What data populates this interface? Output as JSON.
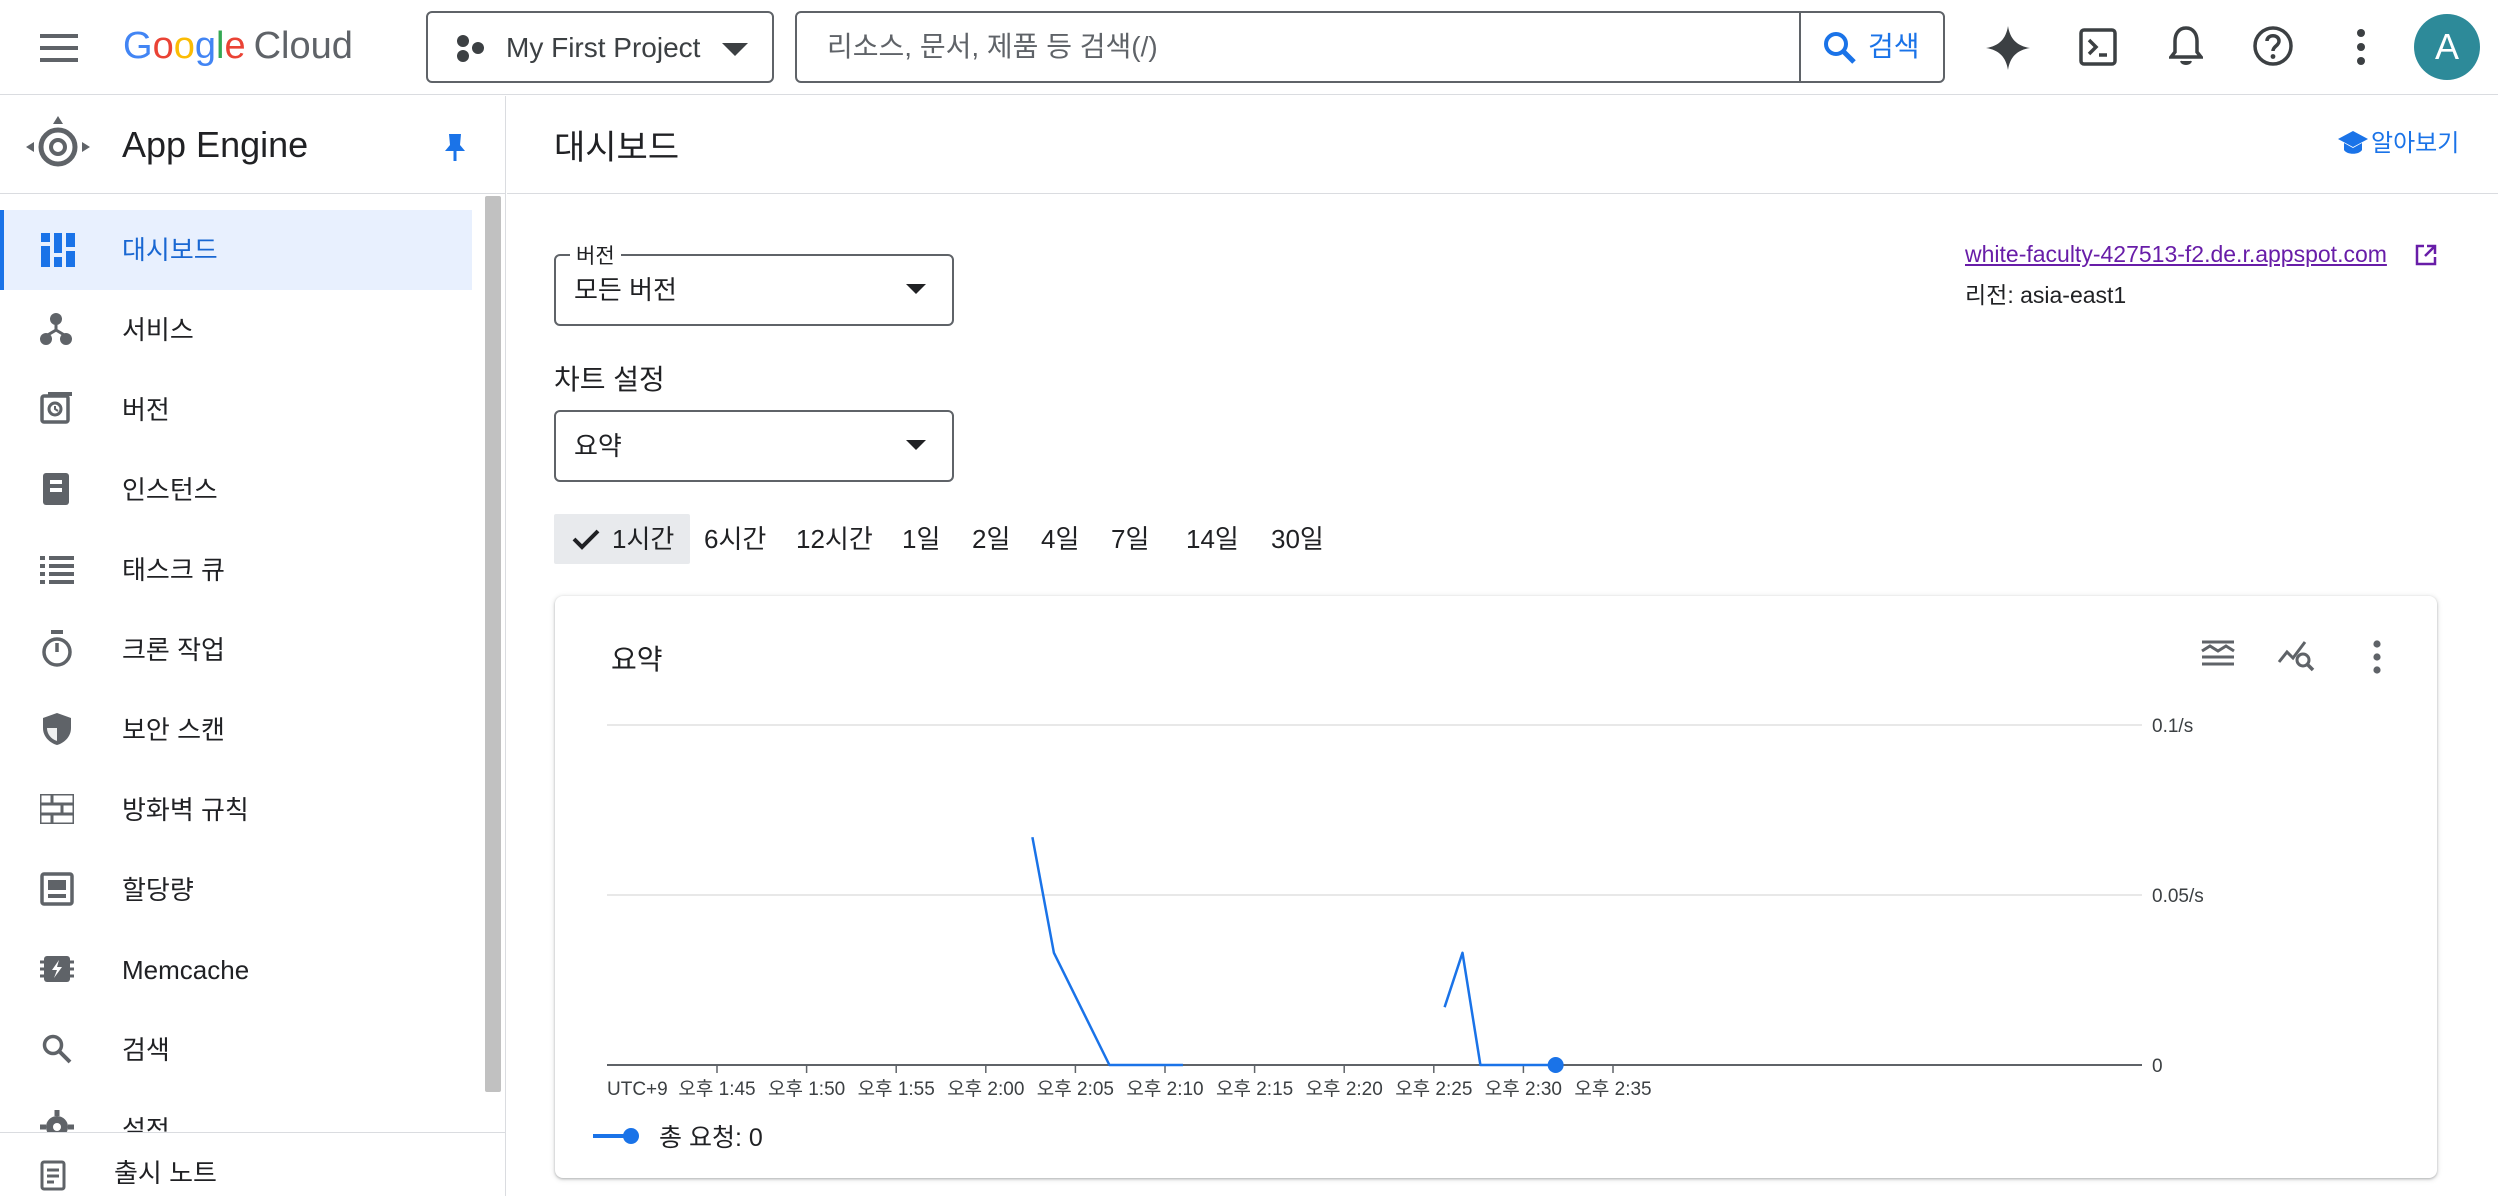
{
  "topbar": {
    "logo_google": [
      "G",
      "o",
      "o",
      "g",
      "l",
      "e"
    ],
    "logo_cloud": "Cloud",
    "project_name": "My First Project",
    "search_placeholder": "리소스, 문서, 제품 등 검색(/)",
    "search_button": "검색",
    "avatar_letter": "A",
    "icons": [
      "menu-icon",
      "project-icon",
      "dropdown-icon",
      "search-icon",
      "gemini-sparkle-icon",
      "cloud-shell-icon",
      "notifications-icon",
      "help-icon",
      "more-vert-icon"
    ]
  },
  "sidebar": {
    "product": "App Engine",
    "items": [
      {
        "label": "대시보드",
        "icon": "dashboard-icon",
        "active": true
      },
      {
        "label": "서비스",
        "icon": "services-icon",
        "active": false
      },
      {
        "label": "버전",
        "icon": "versions-icon",
        "active": false
      },
      {
        "label": "인스턴스",
        "icon": "instances-icon",
        "active": false
      },
      {
        "label": "태스크 큐",
        "icon": "task-queue-icon",
        "active": false
      },
      {
        "label": "크론 작업",
        "icon": "timer-icon",
        "active": false
      },
      {
        "label": "보안 스캔",
        "icon": "shield-icon",
        "active": false
      },
      {
        "label": "방화벽 규칙",
        "icon": "firewall-icon",
        "active": false
      },
      {
        "label": "할당량",
        "icon": "quota-icon",
        "active": false
      },
      {
        "label": "Memcache",
        "icon": "memcache-icon",
        "active": false
      },
      {
        "label": "검색",
        "icon": "search-icon",
        "active": false
      },
      {
        "label": "설정",
        "icon": "settings-icon",
        "active": false
      }
    ],
    "release_notes": "출시 노트"
  },
  "main": {
    "title": "대시보드",
    "learn_label": "알아보기",
    "version_select": {
      "label": "버전",
      "value": "모든 버전"
    },
    "chart_settings_label": "차트 설정",
    "chart_select": {
      "value": "요약"
    },
    "time_ranges": [
      {
        "label": "1시간",
        "selected": true
      },
      {
        "label": "6시간",
        "selected": false
      },
      {
        "label": "12시간",
        "selected": false
      },
      {
        "label": "1일",
        "selected": false
      },
      {
        "label": "2일",
        "selected": false
      },
      {
        "label": "4일",
        "selected": false
      },
      {
        "label": "7일",
        "selected": false
      },
      {
        "label": "14일",
        "selected": false
      },
      {
        "label": "30일",
        "selected": false
      }
    ],
    "app_url": "white-faculty-427513-f2.de.r.appspot.com",
    "region": "리전: asia-east1",
    "accent_color": "#1a73e8"
  },
  "chart_data": {
    "type": "line",
    "title": "요약",
    "timezone_label": "UTC+9",
    "x_ticks": [
      "오후 1:45",
      "오후 1:50",
      "오후 1:55",
      "오후 2:00",
      "오후 2:05",
      "오후 2:10",
      "오후 2:15",
      "오후 2:20",
      "오후 2:25",
      "오후 2:30",
      "오후 2:35"
    ],
    "x_range_minutes": [
      -120,
      25
    ],
    "y_ticks": [
      "0.1/s",
      "0.05/s",
      "0"
    ],
    "ylim": [
      0,
      0.1
    ],
    "series": [
      {
        "name": "총 요청",
        "color": "#1a73e8",
        "segments": [
          [
            [
              -7.4,
              0.067
            ],
            [
              -6.2,
              0.033
            ],
            [
              -3.1,
              0
            ],
            [
              1.0,
              0
            ]
          ],
          [
            [
              15.6,
              0.017
            ],
            [
              16.6,
              0.033
            ],
            [
              17.6,
              0
            ],
            [
              21.8,
              0
            ]
          ]
        ],
        "last_point": [
          21.8,
          0
        ],
        "legend_value": "0"
      }
    ],
    "grid": true,
    "legend_position": "bottom-left"
  }
}
